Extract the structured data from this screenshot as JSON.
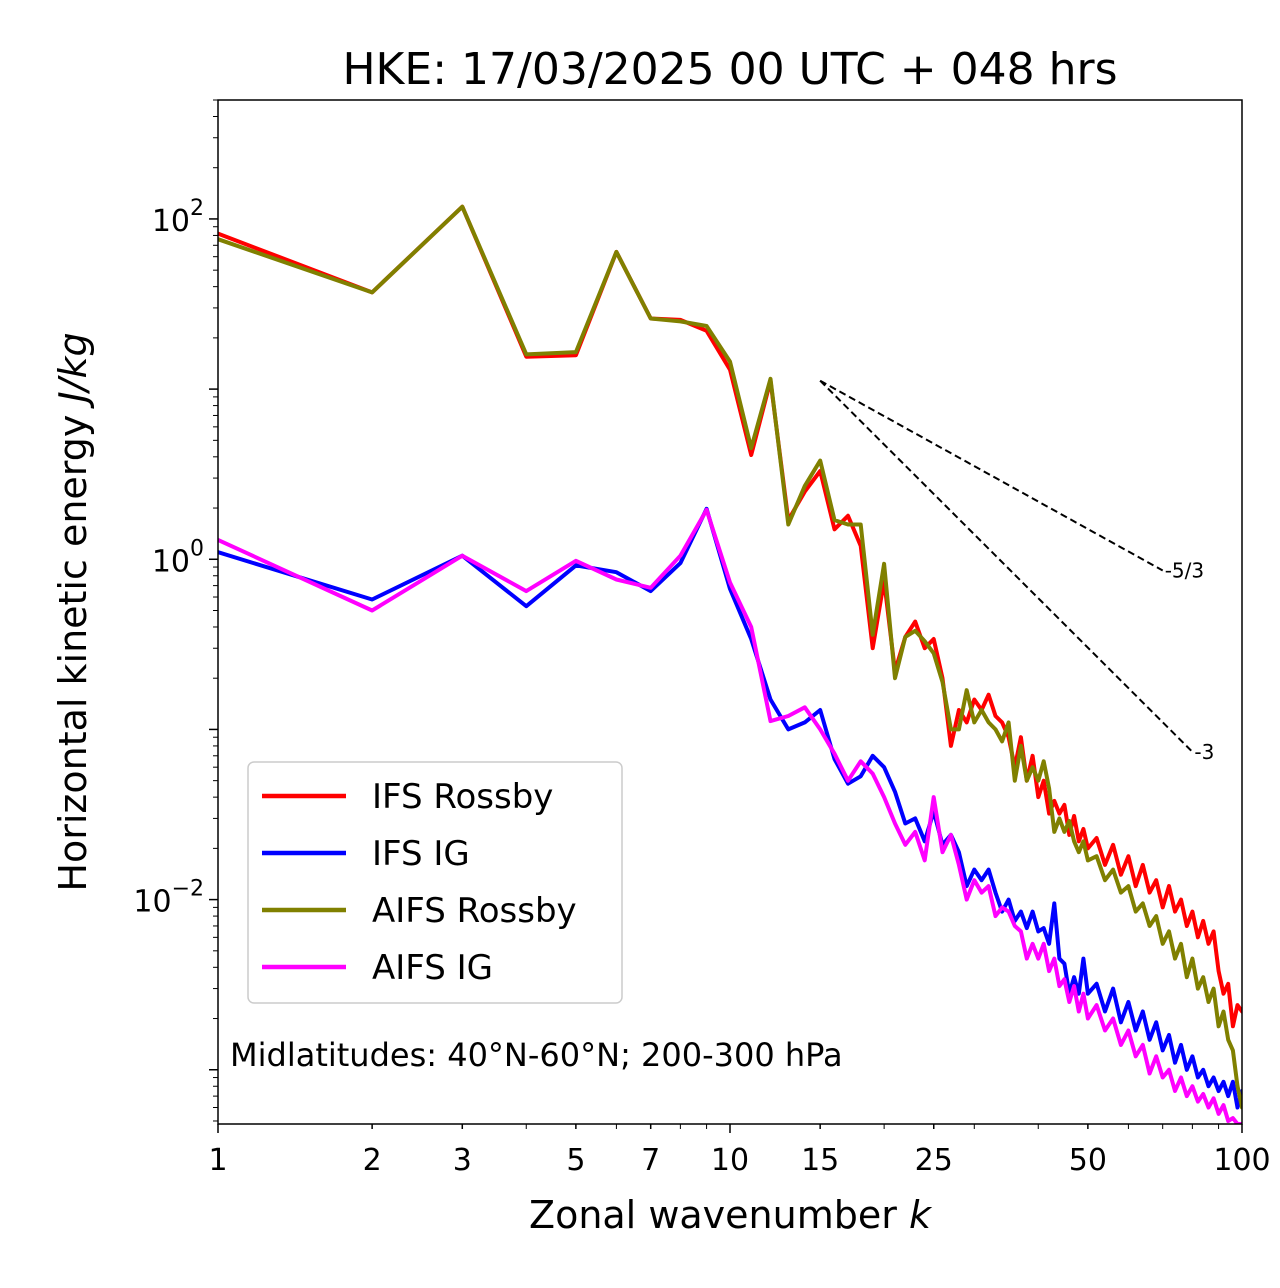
{
  "chart_data": {
    "type": "line",
    "title": "HKE: 17/03/2025 00 UTC + 048 hrs",
    "xlabel": "Zonal wavenumber",
    "xlabel_var": "k",
    "ylabel": "Horizontal kinetic energy",
    "ylabel_unit": "J/kg",
    "xscale": "log",
    "yscale": "log",
    "xlim": [
      1,
      100
    ],
    "ylim": [
      0.00048,
      500
    ],
    "xticks": [
      1,
      2,
      3,
      5,
      7,
      10,
      15,
      25,
      50,
      100
    ],
    "xtick_labels": [
      "1",
      "2",
      "3",
      "5",
      "7",
      "10",
      "15",
      "25",
      "50",
      "100"
    ],
    "yticks": [
      {
        "value": 100,
        "base": "10",
        "exp": "2"
      },
      {
        "value": 1,
        "base": "10",
        "exp": "0"
      },
      {
        "value": 0.01,
        "base": "10",
        "exp": "−2"
      }
    ],
    "legend_position": "lower-left",
    "annotation": "Midlatitudes: 40°N-60°N; 200-300 hPa",
    "reference_lines": [
      {
        "label": "-5/3",
        "slope": -1.6667,
        "x": [
          15,
          70
        ],
        "y0": 11.2
      },
      {
        "label": "-3",
        "slope": -3,
        "x": [
          15,
          80
        ],
        "y0": 11.2
      }
    ],
    "series": [
      {
        "name": "IFS Rossby",
        "color": "#ff0000",
        "points": [
          [
            1,
            82
          ],
          [
            2,
            37
          ],
          [
            3,
            118
          ],
          [
            4,
            15.5
          ],
          [
            5,
            15.8
          ],
          [
            6,
            64
          ],
          [
            7,
            26
          ],
          [
            8,
            25.5
          ],
          [
            9,
            22
          ],
          [
            10,
            13
          ],
          [
            11,
            4.1
          ],
          [
            12,
            11.2
          ],
          [
            13,
            1.7
          ],
          [
            14,
            2.5
          ],
          [
            15,
            3.3
          ],
          [
            16,
            1.5
          ],
          [
            17,
            1.8
          ],
          [
            18,
            1.2
          ],
          [
            19,
            0.3
          ],
          [
            20,
            0.75
          ],
          [
            21,
            0.22
          ],
          [
            22,
            0.35
          ],
          [
            23,
            0.43
          ],
          [
            24,
            0.3
          ],
          [
            25,
            0.34
          ],
          [
            26,
            0.2
          ],
          [
            27,
            0.08
          ],
          [
            28,
            0.13
          ],
          [
            29,
            0.11
          ],
          [
            30,
            0.15
          ],
          [
            31,
            0.13
          ],
          [
            32,
            0.16
          ],
          [
            33,
            0.12
          ],
          [
            34,
            0.11
          ],
          [
            35,
            0.09
          ],
          [
            36,
            0.06
          ],
          [
            37,
            0.09
          ],
          [
            38,
            0.05
          ],
          [
            39,
            0.07
          ],
          [
            40,
            0.04
          ],
          [
            41,
            0.05
          ],
          [
            42,
            0.032
          ],
          [
            43,
            0.038
          ],
          [
            44,
            0.032
          ],
          [
            45,
            0.036
          ],
          [
            46,
            0.024
          ],
          [
            47,
            0.031
          ],
          [
            48,
            0.022
          ],
          [
            49,
            0.026
          ],
          [
            50,
            0.02
          ],
          [
            52,
            0.023
          ],
          [
            54,
            0.016
          ],
          [
            56,
            0.021
          ],
          [
            58,
            0.014
          ],
          [
            60,
            0.018
          ],
          [
            62,
            0.012
          ],
          [
            64,
            0.016
          ],
          [
            66,
            0.011
          ],
          [
            68,
            0.013
          ],
          [
            70,
            0.009
          ],
          [
            72,
            0.012
          ],
          [
            74,
            0.0085
          ],
          [
            76,
            0.01
          ],
          [
            78,
            0.007
          ],
          [
            80,
            0.0085
          ],
          [
            82,
            0.006
          ],
          [
            84,
            0.0075
          ],
          [
            86,
            0.0055
          ],
          [
            88,
            0.0065
          ],
          [
            90,
            0.0038
          ],
          [
            92,
            0.0028
          ],
          [
            94,
            0.0032
          ],
          [
            96,
            0.0018
          ],
          [
            98,
            0.0024
          ],
          [
            100,
            0.0022
          ]
        ]
      },
      {
        "name": "IFS IG",
        "color": "#0000ff",
        "points": [
          [
            1,
            1.1
          ],
          [
            2,
            0.58
          ],
          [
            3,
            1.05
          ],
          [
            4,
            0.53
          ],
          [
            5,
            0.92
          ],
          [
            6,
            0.84
          ],
          [
            7,
            0.65
          ],
          [
            8,
            0.95
          ],
          [
            9,
            1.98
          ],
          [
            10,
            0.67
          ],
          [
            11,
            0.34
          ],
          [
            12,
            0.15
          ],
          [
            13,
            0.1
          ],
          [
            14,
            0.11
          ],
          [
            15,
            0.13
          ],
          [
            16,
            0.067
          ],
          [
            17,
            0.048
          ],
          [
            18,
            0.053
          ],
          [
            19,
            0.07
          ],
          [
            20,
            0.06
          ],
          [
            21,
            0.043
          ],
          [
            22,
            0.028
          ],
          [
            23,
            0.03
          ],
          [
            24,
            0.022
          ],
          [
            25,
            0.033
          ],
          [
            26,
            0.021
          ],
          [
            27,
            0.024
          ],
          [
            28,
            0.019
          ],
          [
            29,
            0.012
          ],
          [
            30,
            0.015
          ],
          [
            31,
            0.013
          ],
          [
            32,
            0.015
          ],
          [
            33,
            0.011
          ],
          [
            34,
            0.0085
          ],
          [
            35,
            0.01
          ],
          [
            36,
            0.0075
          ],
          [
            37,
            0.0085
          ],
          [
            38,
            0.0068
          ],
          [
            39,
            0.0085
          ],
          [
            40,
            0.0065
          ],
          [
            41,
            0.0068
          ],
          [
            42,
            0.0055
          ],
          [
            43,
            0.0095
          ],
          [
            44,
            0.0045
          ],
          [
            45,
            0.0042
          ],
          [
            46,
            0.0028
          ],
          [
            47,
            0.0035
          ],
          [
            48,
            0.0028
          ],
          [
            49,
            0.0045
          ],
          [
            50,
            0.0028
          ],
          [
            52,
            0.0032
          ],
          [
            54,
            0.0022
          ],
          [
            56,
            0.003
          ],
          [
            58,
            0.0019
          ],
          [
            60,
            0.0025
          ],
          [
            62,
            0.0017
          ],
          [
            64,
            0.0022
          ],
          [
            66,
            0.0015
          ],
          [
            68,
            0.0019
          ],
          [
            70,
            0.0013
          ],
          [
            72,
            0.0016
          ],
          [
            74,
            0.0011
          ],
          [
            76,
            0.0014
          ],
          [
            78,
            0.001
          ],
          [
            80,
            0.0012
          ],
          [
            82,
            0.0009
          ],
          [
            84,
            0.001
          ],
          [
            86,
            0.0008
          ],
          [
            88,
            0.0009
          ],
          [
            90,
            0.00075
          ],
          [
            92,
            0.00085
          ],
          [
            94,
            0.0007
          ],
          [
            96,
            0.00085
          ],
          [
            98,
            0.0006
          ],
          [
            100,
            0.00075
          ]
        ]
      },
      {
        "name": "AIFS Rossby",
        "color": "#808000",
        "points": [
          [
            1,
            76
          ],
          [
            2,
            37
          ],
          [
            3,
            118
          ],
          [
            4,
            16
          ],
          [
            5,
            16.5
          ],
          [
            6,
            64
          ],
          [
            7,
            26
          ],
          [
            8,
            25
          ],
          [
            9,
            23.5
          ],
          [
            10,
            14.5
          ],
          [
            11,
            4.5
          ],
          [
            12,
            11.5
          ],
          [
            13,
            1.6
          ],
          [
            14,
            2.7
          ],
          [
            15,
            3.8
          ],
          [
            16,
            1.7
          ],
          [
            17,
            1.6
          ],
          [
            18,
            1.6
          ],
          [
            19,
            0.36
          ],
          [
            20,
            0.94
          ],
          [
            21,
            0.2
          ],
          [
            22,
            0.35
          ],
          [
            23,
            0.38
          ],
          [
            24,
            0.33
          ],
          [
            25,
            0.28
          ],
          [
            26,
            0.19
          ],
          [
            27,
            0.1
          ],
          [
            28,
            0.1
          ],
          [
            29,
            0.17
          ],
          [
            30,
            0.11
          ],
          [
            31,
            0.13
          ],
          [
            32,
            0.11
          ],
          [
            33,
            0.1
          ],
          [
            34,
            0.085
          ],
          [
            35,
            0.11
          ],
          [
            36,
            0.05
          ],
          [
            37,
            0.08
          ],
          [
            38,
            0.05
          ],
          [
            39,
            0.06
          ],
          [
            40,
            0.05
          ],
          [
            41,
            0.065
          ],
          [
            42,
            0.045
          ],
          [
            43,
            0.025
          ],
          [
            44,
            0.03
          ],
          [
            45,
            0.025
          ],
          [
            46,
            0.029
          ],
          [
            47,
            0.022
          ],
          [
            48,
            0.019
          ],
          [
            49,
            0.022
          ],
          [
            50,
            0.017
          ],
          [
            52,
            0.018
          ],
          [
            54,
            0.013
          ],
          [
            56,
            0.015
          ],
          [
            58,
            0.011
          ],
          [
            60,
            0.012
          ],
          [
            62,
            0.0085
          ],
          [
            64,
            0.0095
          ],
          [
            66,
            0.007
          ],
          [
            68,
            0.008
          ],
          [
            70,
            0.0055
          ],
          [
            72,
            0.0065
          ],
          [
            74,
            0.0045
          ],
          [
            76,
            0.0055
          ],
          [
            78,
            0.0035
          ],
          [
            80,
            0.0045
          ],
          [
            82,
            0.003
          ],
          [
            84,
            0.0035
          ],
          [
            86,
            0.0025
          ],
          [
            88,
            0.003
          ],
          [
            90,
            0.0018
          ],
          [
            92,
            0.0022
          ],
          [
            94,
            0.0015
          ],
          [
            96,
            0.0013
          ],
          [
            98,
            0.0008
          ],
          [
            100,
            0.0006
          ]
        ]
      },
      {
        "name": "AIFS IG",
        "color": "#ff00ff",
        "points": [
          [
            1,
            1.3
          ],
          [
            2,
            0.5
          ],
          [
            3,
            1.05
          ],
          [
            4,
            0.65
          ],
          [
            5,
            0.98
          ],
          [
            6,
            0.76
          ],
          [
            7,
            0.68
          ],
          [
            8,
            1.05
          ],
          [
            9,
            1.95
          ],
          [
            10,
            0.73
          ],
          [
            11,
            0.4
          ],
          [
            12,
            0.112
          ],
          [
            13,
            0.12
          ],
          [
            14,
            0.135
          ],
          [
            15,
            0.1
          ],
          [
            16,
            0.072
          ],
          [
            17,
            0.05
          ],
          [
            18,
            0.065
          ],
          [
            19,
            0.055
          ],
          [
            20,
            0.04
          ],
          [
            21,
            0.028
          ],
          [
            22,
            0.021
          ],
          [
            23,
            0.025
          ],
          [
            24,
            0.017
          ],
          [
            25,
            0.04
          ],
          [
            26,
            0.019
          ],
          [
            27,
            0.024
          ],
          [
            28,
            0.016
          ],
          [
            29,
            0.01
          ],
          [
            30,
            0.013
          ],
          [
            31,
            0.011
          ],
          [
            32,
            0.012
          ],
          [
            33,
            0.008
          ],
          [
            34,
            0.009
          ],
          [
            35,
            0.0085
          ],
          [
            36,
            0.007
          ],
          [
            37,
            0.0065
          ],
          [
            38,
            0.0045
          ],
          [
            39,
            0.0055
          ],
          [
            40,
            0.0045
          ],
          [
            41,
            0.0055
          ],
          [
            42,
            0.0038
          ],
          [
            43,
            0.0045
          ],
          [
            44,
            0.0031
          ],
          [
            45,
            0.0034
          ],
          [
            46,
            0.0025
          ],
          [
            47,
            0.0031
          ],
          [
            48,
            0.0022
          ],
          [
            49,
            0.0028
          ],
          [
            50,
            0.002
          ],
          [
            52,
            0.0024
          ],
          [
            54,
            0.0017
          ],
          [
            56,
            0.002
          ],
          [
            58,
            0.0014
          ],
          [
            60,
            0.0017
          ],
          [
            62,
            0.0012
          ],
          [
            64,
            0.0014
          ],
          [
            66,
            0.00095
          ],
          [
            68,
            0.0012
          ],
          [
            70,
            0.0009
          ],
          [
            72,
            0.001
          ],
          [
            74,
            0.00075
          ],
          [
            76,
            0.0009
          ],
          [
            78,
            0.0007
          ],
          [
            80,
            0.0008
          ],
          [
            82,
            0.00065
          ],
          [
            84,
            0.00072
          ],
          [
            86,
            0.0006
          ],
          [
            88,
            0.00068
          ],
          [
            90,
            0.00055
          ],
          [
            92,
            0.00062
          ],
          [
            94,
            0.0005
          ],
          [
            96,
            0.00052
          ],
          [
            98,
            0.00048
          ],
          [
            100,
            0.00048
          ]
        ]
      }
    ]
  }
}
